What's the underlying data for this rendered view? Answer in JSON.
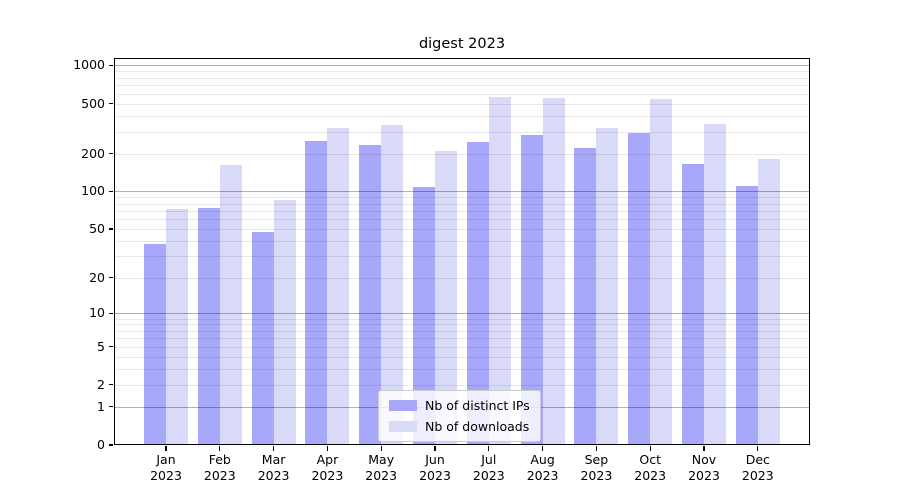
{
  "title": "digest 2023",
  "chart_data": {
    "type": "bar",
    "title": "digest 2023",
    "categories": [
      "Jan",
      "Feb",
      "Mar",
      "Apr",
      "May",
      "Jun",
      "Jul",
      "Aug",
      "Sep",
      "Oct",
      "Nov",
      "Dec"
    ],
    "category_year_line": "2023",
    "series": [
      {
        "name": "Nb of distinct IPs",
        "color": "#a8a8fa",
        "values": [
          38,
          74,
          47,
          252,
          234,
          108,
          249,
          281,
          223,
          290,
          166,
          111
        ]
      },
      {
        "name": "Nb of downloads",
        "color": "#d9d9f8",
        "values": [
          72,
          163,
          86,
          318,
          338,
          210,
          560,
          550,
          321,
          543,
          342,
          181
        ]
      }
    ],
    "xlabel": "",
    "ylabel": "",
    "y_axis": {
      "scale": "log1p",
      "tick_labels": [
        0,
        1,
        2,
        5,
        10,
        20,
        50,
        100,
        200,
        500,
        1000
      ],
      "major_gridlines": [
        1,
        10,
        100,
        1000
      ],
      "minor_gridlines": [
        2,
        3,
        4,
        5,
        6,
        7,
        8,
        9,
        20,
        30,
        40,
        50,
        60,
        70,
        80,
        90,
        200,
        300,
        400,
        500,
        600,
        700,
        800,
        900
      ],
      "max_value": 1145
    },
    "ylim": [
      0,
      1145
    ],
    "grid": "on",
    "legend_position": "lower center",
    "colors": {
      "bar_dark": "#a8a8fa",
      "bar_light": "#d9d9f8",
      "grid_major": "#b3b3b3",
      "grid_minor": "#e8e8e8",
      "frame": "#000000",
      "background": "#ffffff"
    }
  }
}
